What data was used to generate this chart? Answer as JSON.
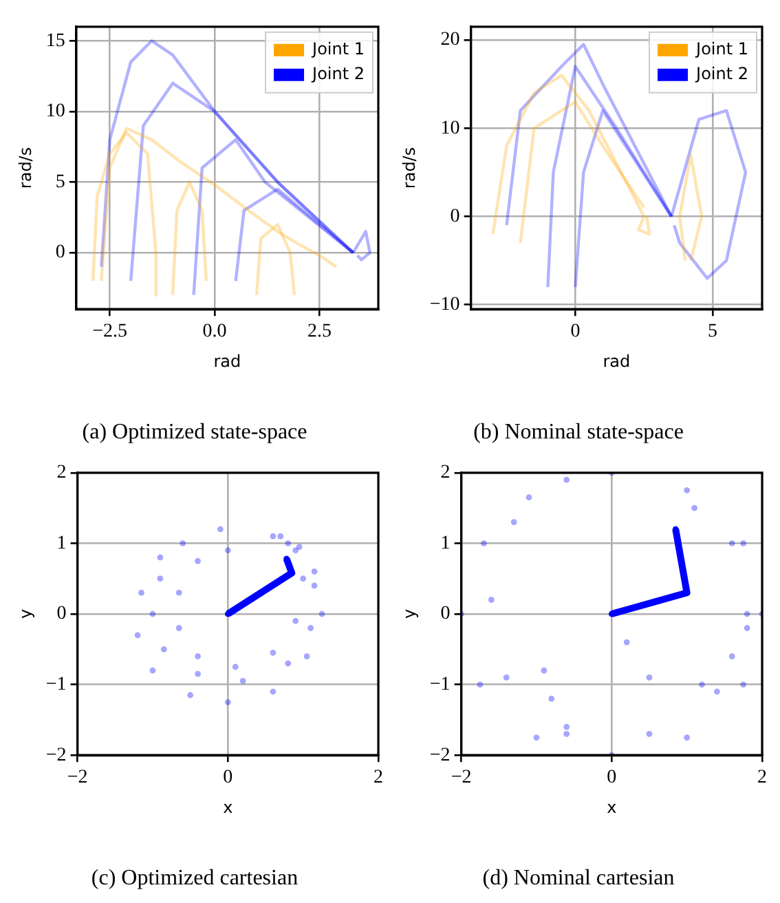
{
  "chart_data": [
    {
      "type": "line",
      "title": "(a) Optimized state-space",
      "xlabel": "rad",
      "ylabel": "rad/s",
      "xlim": [
        -3.3,
        3.9
      ],
      "xticks": [
        {
          "value": -2.5,
          "label": "−2.5"
        },
        {
          "value": 0,
          "label": "0.0"
        },
        {
          "value": 2.5,
          "label": "2.5"
        }
      ],
      "ylim": [
        -4,
        16
      ],
      "yticks": [
        0,
        5,
        10,
        15
      ],
      "grid": true,
      "legend": "top right",
      "series": [
        {
          "name": "Joint 1",
          "color": "#ffa500",
          "x": [
            -2.7,
            -2.5,
            -2.1,
            -1.5,
            -0.8,
            0,
            0.8,
            1.5,
            2.0,
            2.5,
            2.9,
            null,
            -2.9,
            -2.8,
            -2.5,
            -2.1,
            -1.6,
            -1.4,
            -1.4,
            null,
            -1.0,
            -0.9,
            -0.6,
            -0.3,
            -0.2,
            null,
            1.0,
            1.1,
            1.5,
            1.8,
            1.9
          ],
          "values": [
            -2,
            6,
            8.8,
            8.0,
            6.4,
            4.8,
            3.0,
            1.5,
            0.6,
            -0.2,
            -1,
            null,
            -2,
            4,
            7,
            8.5,
            7,
            0,
            -3,
            null,
            -3,
            3,
            5,
            3,
            -2,
            null,
            -3,
            1,
            2,
            0,
            -3
          ]
        },
        {
          "name": "Joint 2",
          "color": "#0000ff",
          "x": [
            -2.7,
            -2.5,
            -2.0,
            -1.5,
            -1.0,
            0,
            1.5,
            3.3,
            null,
            -2.0,
            -1.7,
            -1.0,
            0,
            1.5,
            3.3,
            null,
            3.3,
            3.6,
            3.7,
            3.5,
            3.4,
            null,
            -0.5,
            -0.3,
            0.5,
            1.2,
            3.3,
            null,
            0.5,
            0.7,
            1.5,
            3.3
          ],
          "values": [
            -1,
            8,
            13.5,
            15,
            14,
            10,
            5,
            0,
            null,
            -2,
            9,
            12,
            10,
            5,
            0,
            null,
            0,
            1.5,
            0,
            -0.5,
            -0.2,
            null,
            -3,
            6,
            8,
            5,
            0,
            null,
            -2,
            3,
            4.5,
            0
          ]
        }
      ]
    },
    {
      "type": "line",
      "title": "(b) Nominal state-space",
      "xlabel": "rad",
      "ylabel": "rad/s",
      "xlim": [
        -3.8,
        6.8
      ],
      "xticks": [
        0,
        5
      ],
      "ylim": [
        -10.5,
        21.5
      ],
      "yticks": [
        {
          "value": -10,
          "label": "−10"
        },
        0,
        10,
        20
      ],
      "grid": true,
      "legend": "top right",
      "series": [
        {
          "name": "Joint 1",
          "color": "#ffa500",
          "x": [
            -3,
            -2.5,
            -1.5,
            -0.5,
            0.5,
            1.5,
            2.5,
            2.3,
            2.7,
            2.6,
            null,
            -2,
            -1.5,
            0,
            1,
            2.5,
            null,
            4,
            3.8,
            4.2,
            4.6,
            4.2
          ],
          "values": [
            -2,
            8,
            14,
            16,
            12,
            6,
            0,
            -1.5,
            -2,
            0,
            null,
            -3,
            10,
            13,
            8,
            1,
            null,
            -5,
            0,
            7,
            0,
            -5
          ]
        },
        {
          "name": "Joint 2",
          "color": "#0000ff",
          "x": [
            -2.5,
            -2,
            -0.5,
            0.3,
            1,
            2,
            3.5,
            null,
            -1,
            -0.8,
            0,
            1.5,
            3.5,
            null,
            3.5,
            4.5,
            5.5,
            6.2,
            5.5,
            4.8,
            3.8,
            3.6,
            null,
            0,
            0.3,
            1,
            3.5
          ],
          "values": [
            -1,
            12,
            17,
            19.5,
            15,
            9,
            0,
            null,
            -8,
            5,
            17,
            10,
            0,
            null,
            0,
            11,
            12,
            5,
            -5,
            -7,
            -3,
            -1,
            null,
            -8,
            5,
            12,
            0
          ]
        }
      ]
    },
    {
      "type": "scatter",
      "title": "(c) Optimized cartesian",
      "xlabel": "x",
      "ylabel": "y",
      "xlim": [
        -2,
        2
      ],
      "xticks": [
        {
          "value": -2,
          "label": "−2"
        },
        0,
        2
      ],
      "ylim": [
        -2,
        2
      ],
      "yticks": [
        {
          "value": -2,
          "label": "−2"
        },
        {
          "value": -1,
          "label": "−1"
        },
        0,
        1,
        2
      ],
      "grid": true,
      "marker": "circle",
      "series": [
        {
          "color": "#0000ff",
          "x": [
            -0.9,
            -1.15,
            -1.2,
            -1.0,
            -0.5,
            0,
            0.6,
            1.05,
            1.25,
            1.15,
            0.95,
            0.6
          ],
          "values": [
            0.8,
            0.3,
            -0.3,
            -0.8,
            -1.15,
            -1.25,
            -1.1,
            -0.6,
            0,
            0.6,
            0.95,
            1.1
          ]
        },
        {
          "color": "#0000ff",
          "x": [
            -0.1,
            -0.6,
            -0.9,
            -1.0,
            -0.85,
            -0.4,
            0.2,
            0.8,
            1.1,
            1.15,
            0.9,
            0.7
          ],
          "values": [
            1.2,
            1.0,
            0.5,
            0,
            -0.5,
            -0.85,
            -0.95,
            -0.7,
            -0.2,
            0.4,
            0.9,
            1.1
          ]
        },
        {
          "color": "#0000ff",
          "x": [
            0,
            -0.4,
            -0.65,
            -0.65,
            -0.4,
            0.1,
            0.6,
            0.9,
            1.0,
            0.8
          ],
          "values": [
            0.9,
            0.75,
            0.3,
            -0.2,
            -0.6,
            -0.75,
            -0.55,
            -0.1,
            0.5,
            1.0
          ]
        },
        {
          "type": "line",
          "color": "#0000ff",
          "x": [
            0,
            0.85,
            0.78
          ],
          "values": [
            0,
            0.58,
            0.78
          ]
        }
      ]
    },
    {
      "type": "scatter",
      "title": "(d) Nominal cartesian",
      "xlabel": "x",
      "ylabel": "y",
      "xlim": [
        -2,
        2
      ],
      "xticks": [
        {
          "value": -2,
          "label": "−2"
        },
        0,
        2
      ],
      "ylim": [
        -2,
        2
      ],
      "yticks": [
        {
          "value": -2,
          "label": "−2"
        },
        {
          "value": -1,
          "label": "−1"
        },
        0,
        1,
        2
      ],
      "grid": true,
      "marker": "circle",
      "series": [
        {
          "color": "#0000ff",
          "x": [
            -1.1,
            -1.7,
            -2,
            -1.75,
            -1,
            0,
            1,
            1.75,
            2,
            1.75,
            1,
            0
          ],
          "values": [
            1.65,
            1,
            0,
            -1,
            -1.75,
            -2,
            -1.75,
            -1,
            0,
            1,
            1.75,
            2
          ]
        },
        {
          "color": "#0000ff",
          "x": [
            -0.6,
            -1.3,
            -1.6,
            -1.4,
            -0.6,
            0.5,
            1.4,
            1.8,
            1.6,
            1.1
          ],
          "values": [
            1.9,
            1.3,
            0.2,
            -0.9,
            -1.6,
            -1.7,
            -1.1,
            0,
            1.0,
            1.5
          ]
        },
        {
          "color": "#0000ff",
          "x": [
            0.2,
            0.5,
            1.2,
            1.6,
            1.8
          ],
          "values": [
            -0.4,
            -0.9,
            -1.0,
            -0.6,
            -0.2
          ]
        },
        {
          "color": "#0000ff",
          "x": [
            -0.9,
            -0.8,
            -0.6
          ],
          "values": [
            -0.8,
            -1.2,
            -1.7
          ]
        },
        {
          "type": "line",
          "color": "#0000ff",
          "x": [
            0,
            1,
            0.85
          ],
          "values": [
            0,
            0.3,
            1.2
          ]
        }
      ]
    }
  ]
}
